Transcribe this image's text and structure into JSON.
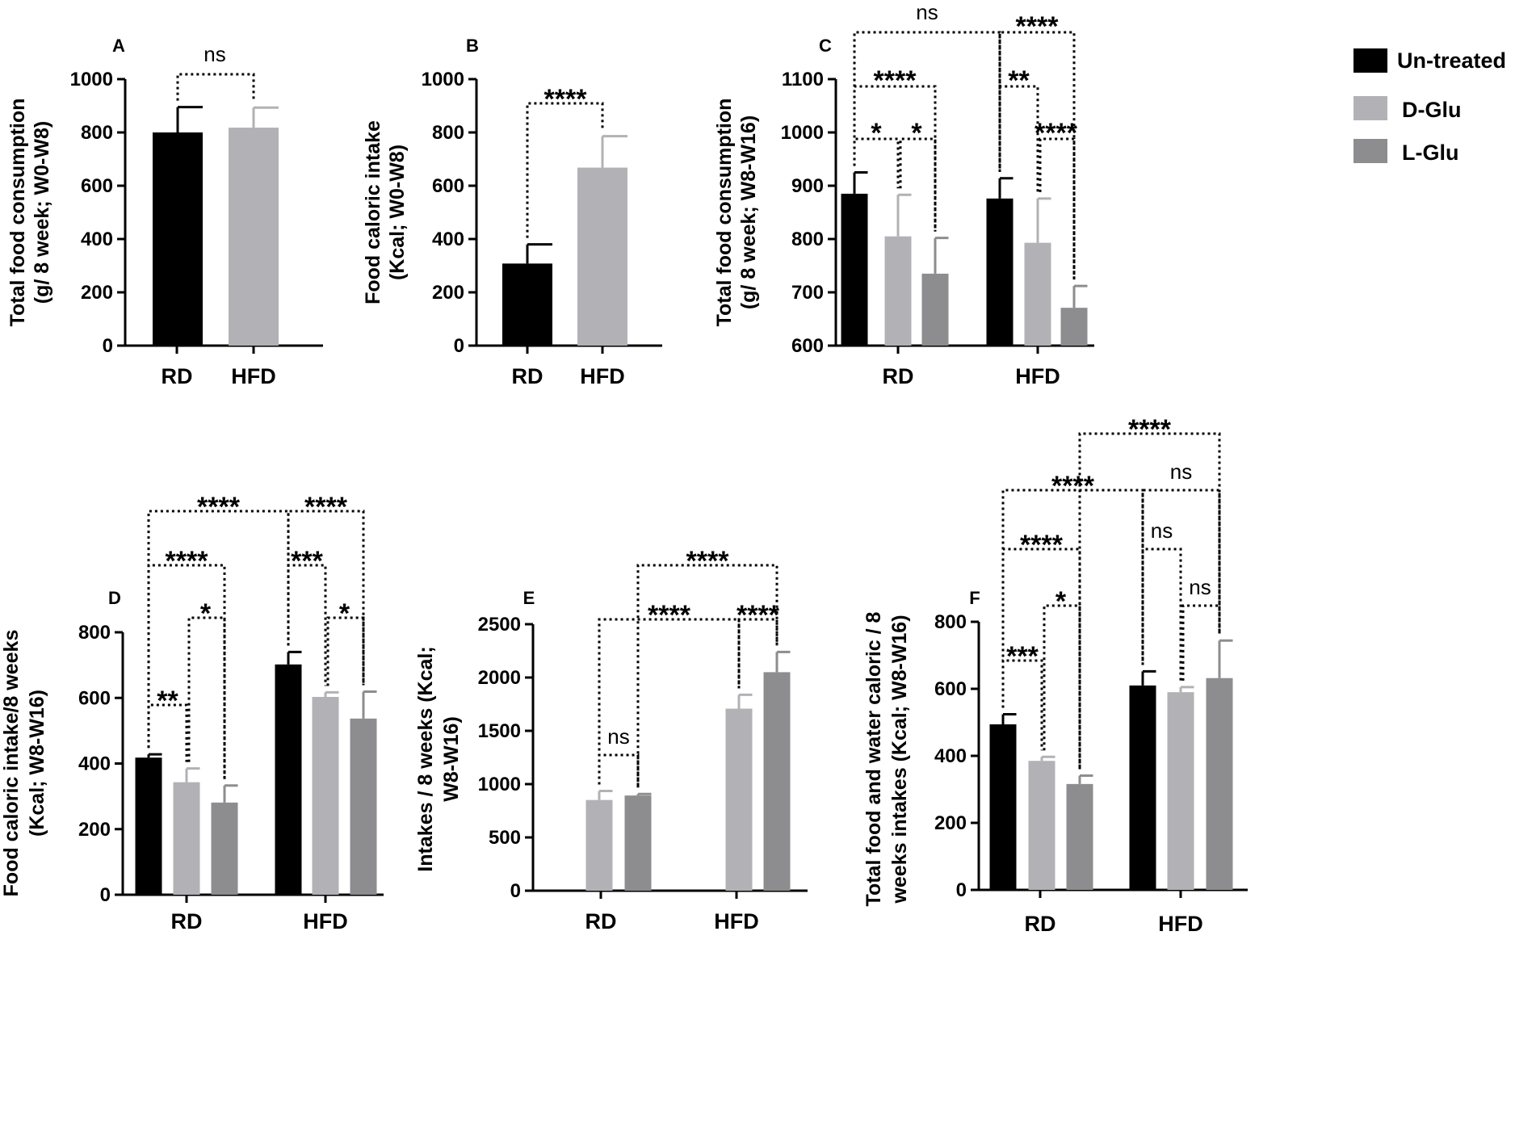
{
  "colors": {
    "Un-treated": "#000000",
    "D-Glu": "#b2b2b6",
    "L-Glu": "#8d8d8f",
    "axis": "#000000"
  },
  "legend": {
    "entries": [
      {
        "name": "Un-treated",
        "color": "#000000"
      },
      {
        "name": "D-Glu",
        "color": "#b2b2b6"
      },
      {
        "name": "L-Glu",
        "color": "#8d8d8f"
      }
    ]
  },
  "chart_data": [
    {
      "panel": "A",
      "type": "bar",
      "ylabel": [
        "Total food consumption",
        "(g/ 8 week; W0-W8)"
      ],
      "ylim": [
        0,
        1000
      ],
      "yticks": [
        0,
        200,
        400,
        600,
        800,
        1000
      ],
      "categories": [
        "RD",
        "HFD"
      ],
      "series": [
        {
          "name": "RD",
          "color": "#000000",
          "values": [
            800,
            null
          ],
          "errors": [
            95,
            null
          ]
        },
        {
          "name": "HFD",
          "color": "#b2b2b6",
          "values": [
            null,
            818
          ],
          "errors": [
            null,
            75
          ]
        }
      ],
      "annotations": [
        {
          "text": "ns",
          "from": [
            0,
            0
          ],
          "to": [
            1,
            1
          ],
          "level": 1020
        }
      ]
    },
    {
      "panel": "B",
      "type": "bar",
      "ylabel": [
        "Food caloric intake",
        "(Kcal; W0-W8)"
      ],
      "ylim": [
        0,
        1000
      ],
      "yticks": [
        0,
        200,
        400,
        600,
        800,
        1000
      ],
      "categories": [
        "RD",
        "HFD"
      ],
      "series": [
        {
          "name": "RD",
          "color": "#000000",
          "values": [
            308,
            null
          ],
          "errors": [
            72,
            null
          ]
        },
        {
          "name": "HFD",
          "color": "#b2b2b6",
          "values": [
            null,
            668
          ],
          "errors": [
            null,
            118
          ]
        }
      ],
      "annotations": [
        {
          "text": "****",
          "from": [
            0,
            0
          ],
          "to": [
            1,
            1
          ],
          "level": 910
        }
      ]
    },
    {
      "panel": "C",
      "type": "bar",
      "ylabel": [
        "Total food consumption",
        "(g/ 8 week; W8-W16)"
      ],
      "ylim": [
        600,
        1100
      ],
      "yticks": [
        600,
        700,
        800,
        900,
        1000,
        1100
      ],
      "categories": [
        "RD",
        "HFD"
      ],
      "series": [
        {
          "name": "Un-treated",
          "color": "#000000",
          "values": [
            885,
            876
          ],
          "errors": [
            40,
            38
          ]
        },
        {
          "name": "D-Glu",
          "color": "#b2b2b6",
          "values": [
            805,
            793
          ],
          "errors": [
            78,
            83
          ]
        },
        {
          "name": "L-Glu",
          "color": "#8d8d8f",
          "values": [
            735,
            671
          ],
          "errors": [
            67,
            41
          ]
        }
      ],
      "annotations": [
        {
          "text": "*",
          "from": [
            0,
            0
          ],
          "to": [
            0,
            1
          ],
          "level": 1.0
        },
        {
          "text": "*",
          "from": [
            0,
            1
          ],
          "to": [
            0,
            2
          ],
          "level": 1.0
        },
        {
          "text": "****",
          "from": [
            0,
            0
          ],
          "to": [
            0,
            2
          ],
          "level": 2.0
        },
        {
          "text": "**",
          "from": [
            1,
            0
          ],
          "to": [
            1,
            1
          ],
          "level": 2.0
        },
        {
          "text": "****",
          "from": [
            1,
            1
          ],
          "to": [
            1,
            2
          ],
          "level": 1.0
        },
        {
          "text": "ns",
          "from": [
            0,
            0
          ],
          "to": [
            1,
            0
          ],
          "level": 3.0
        },
        {
          "text": "****",
          "from": [
            1,
            0
          ],
          "to": [
            1,
            2
          ],
          "level": 3.0
        }
      ]
    },
    {
      "panel": "D",
      "type": "bar",
      "ylabel": [
        "Food caloric intake/8 weeks",
        "(Kcal; W8-W16)"
      ],
      "ylim": [
        0,
        800
      ],
      "yticks": [
        0,
        200,
        400,
        600,
        800
      ],
      "categories": [
        "RD",
        "HFD"
      ],
      "series": [
        {
          "name": "Un-treated",
          "color": "#000000",
          "values": [
            418,
            702
          ],
          "errors": [
            10,
            38
          ]
        },
        {
          "name": "D-Glu",
          "color": "#b2b2b6",
          "values": [
            343,
            603
          ],
          "errors": [
            42,
            14
          ]
        },
        {
          "name": "L-Glu",
          "color": "#8d8d8f",
          "values": [
            281,
            537
          ],
          "errors": [
            52,
            82
          ]
        }
      ],
      "annotations": [
        {
          "text": "**",
          "from": [
            0,
            0
          ],
          "to": [
            0,
            1
          ],
          "level": 1.0
        },
        {
          "text": "*",
          "from": [
            0,
            1
          ],
          "to": [
            0,
            2
          ],
          "level": 2.0
        },
        {
          "text": "*",
          "from": [
            1,
            1
          ],
          "to": [
            1,
            2
          ],
          "level": 2.0
        },
        {
          "text": "****",
          "from": [
            0,
            0
          ],
          "to": [
            0,
            2
          ],
          "level": 3.0
        },
        {
          "text": "***",
          "from": [
            1,
            0
          ],
          "to": [
            1,
            1
          ],
          "level": 3.0
        },
        {
          "text": "****",
          "from": [
            0,
            0
          ],
          "to": [
            1,
            0
          ],
          "level": 4.0
        },
        {
          "text": "****",
          "from": [
            1,
            0
          ],
          "to": [
            1,
            2
          ],
          "level": 4.0
        }
      ]
    },
    {
      "panel": "E",
      "type": "bar",
      "ylabel": [
        "Intakes / 8 weeks  (Kcal;",
        "W8-W16)"
      ],
      "ylim": [
        0,
        2500
      ],
      "yticks": [
        0,
        500,
        1000,
        1500,
        2000,
        2500
      ],
      "categories": [
        "RD",
        "HFD"
      ],
      "series": [
        {
          "name": "D-Glu",
          "color": "#b2b2b6",
          "values": [
            851,
            1708
          ],
          "errors": [
            85,
            130
          ]
        },
        {
          "name": "L-Glu",
          "color": "#8d8d8f",
          "values": [
            893,
            2050
          ],
          "errors": [
            14,
            190
          ]
        }
      ],
      "annotations": [
        {
          "text": "ns",
          "from": [
            0,
            0
          ],
          "to": [
            0,
            1
          ],
          "level": 1.0
        },
        {
          "text": "****",
          "from": [
            0,
            0
          ],
          "to": [
            1,
            0
          ],
          "level": 2.0
        },
        {
          "text": "****",
          "from": [
            1,
            0
          ],
          "to": [
            1,
            1
          ],
          "level": 2.0
        },
        {
          "text": "****",
          "from": [
            0,
            1
          ],
          "to": [
            1,
            1
          ],
          "level": 3.0
        }
      ]
    },
    {
      "panel": "F",
      "type": "bar",
      "ylabel": [
        "Total food and water caloric / 8",
        "weeks  intakes (Kcal; W8-W16)"
      ],
      "ylim": [
        0,
        800
      ],
      "yticks": [
        0,
        200,
        400,
        600,
        800
      ],
      "categories": [
        "RD",
        "HFD"
      ],
      "series": [
        {
          "name": "Un-treated",
          "color": "#000000",
          "values": [
            494,
            610
          ],
          "errors": [
            30,
            42
          ]
        },
        {
          "name": "D-Glu",
          "color": "#b2b2b6",
          "values": [
            385,
            590
          ],
          "errors": [
            12,
            15
          ]
        },
        {
          "name": "L-Glu",
          "color": "#8d8d8f",
          "values": [
            316,
            632
          ],
          "errors": [
            25,
            112
          ]
        }
      ],
      "annotations": [
        {
          "text": "***",
          "from": [
            0,
            0
          ],
          "to": [
            0,
            1
          ],
          "level": 1.0
        },
        {
          "text": "*",
          "from": [
            0,
            1
          ],
          "to": [
            0,
            2
          ],
          "level": 2.0
        },
        {
          "text": "ns",
          "from": [
            1,
            1
          ],
          "to": [
            1,
            2
          ],
          "level": 2.0
        },
        {
          "text": "****",
          "from": [
            0,
            0
          ],
          "to": [
            0,
            2
          ],
          "level": 3.0
        },
        {
          "text": "ns",
          "from": [
            1,
            0
          ],
          "to": [
            1,
            1
          ],
          "level": 3.0
        },
        {
          "text": "****",
          "from": [
            0,
            0
          ],
          "to": [
            1,
            0
          ],
          "level": 4.0
        },
        {
          "text": "ns",
          "from": [
            1,
            0
          ],
          "to": [
            1,
            2
          ],
          "level": 4.0
        },
        {
          "text": "****",
          "from": [
            0,
            2
          ],
          "to": [
            1,
            2
          ],
          "level": 5.0
        }
      ]
    }
  ]
}
